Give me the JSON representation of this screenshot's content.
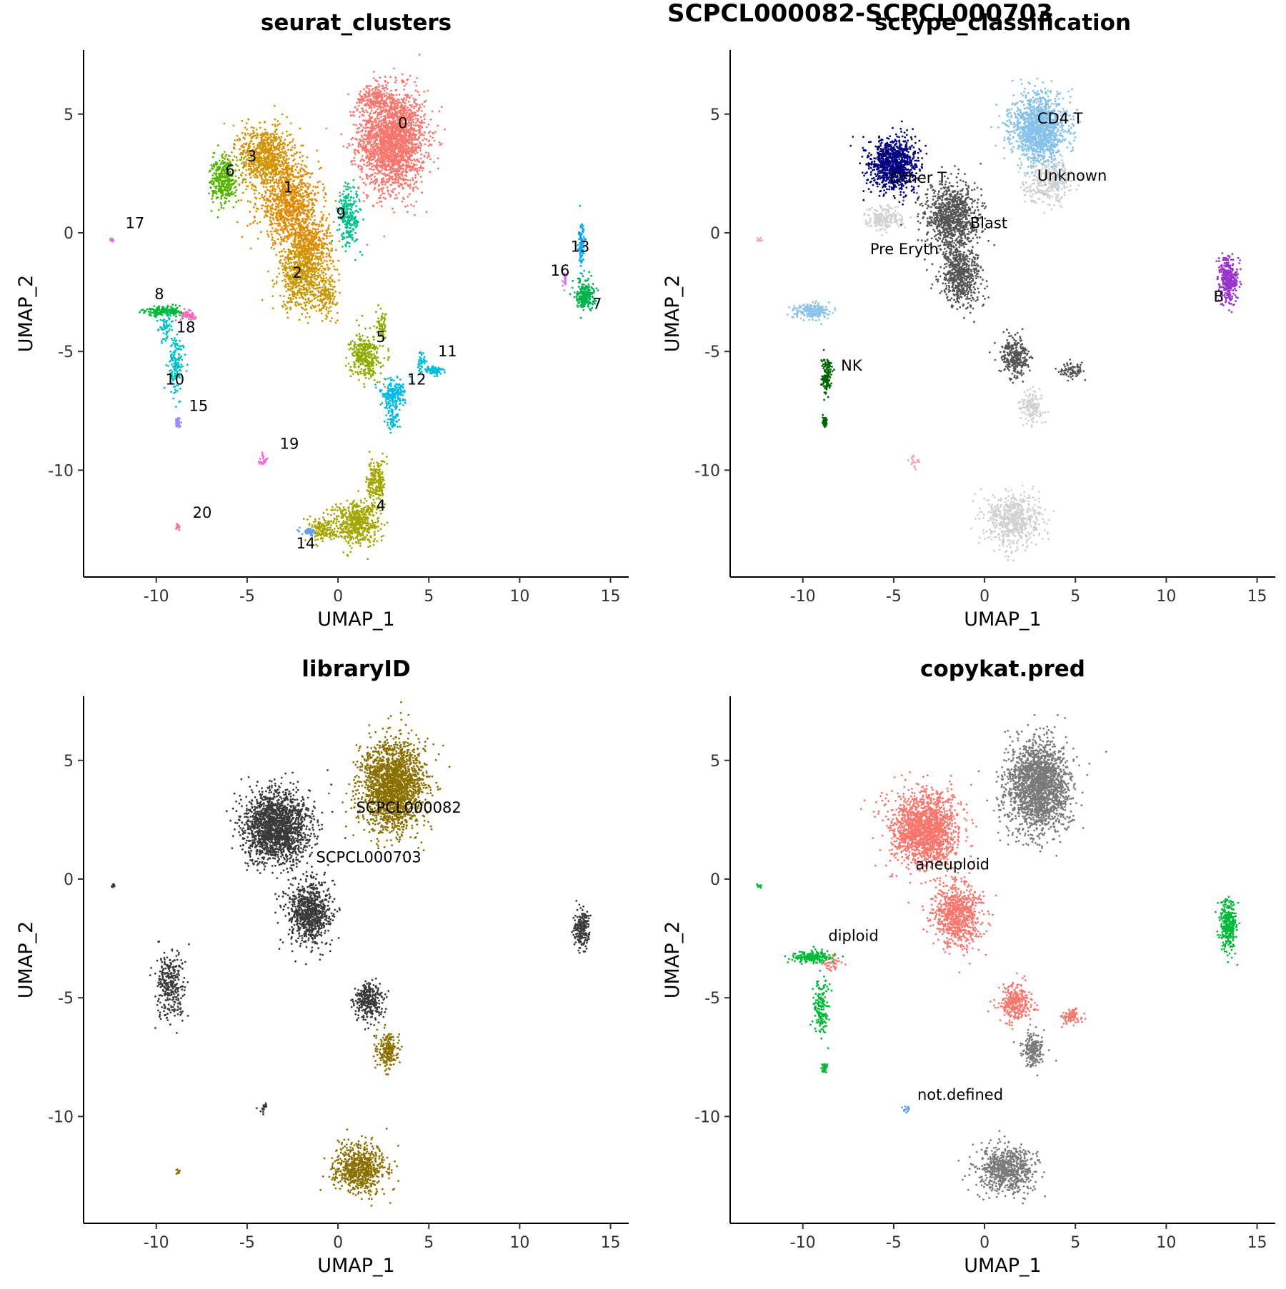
{
  "figure_title": "SCPCL000082-SCPCL000703",
  "chart_data": [
    {
      "type": "scatter",
      "title": "seurat_clusters",
      "xlabel": "UMAP_1",
      "ylabel": "UMAP_2",
      "xlim": [
        -14,
        16
      ],
      "ylim": [
        -14.5,
        7.7
      ],
      "xticks": [
        -10,
        -5,
        0,
        5,
        10,
        15
      ],
      "yticks": [
        -10,
        -5,
        0,
        5
      ],
      "grid": false,
      "legend": "none",
      "groups": [
        {
          "name": "0",
          "color": "#F8766D",
          "label": [
            3.3,
            4.4
          ],
          "blobs": [
            [
              3.0,
              3.9,
              1.8,
              2.1,
              2200
            ],
            [
              2.0,
              5.7,
              0.9,
              0.6,
              150
            ]
          ]
        },
        {
          "name": "1",
          "color": "#E18A00",
          "label": [
            -3.0,
            1.7
          ],
          "blobs": [
            [
              -2.7,
              1.2,
              1.7,
              1.6,
              900
            ],
            [
              -1.5,
              -0.5,
              1.2,
              1.2,
              400
            ]
          ]
        },
        {
          "name": "2",
          "color": "#CA9700",
          "label": [
            -2.5,
            -1.9
          ],
          "blobs": [
            [
              -2.0,
              -1.8,
              1.2,
              1.4,
              650
            ],
            [
              -0.6,
              -2.6,
              0.6,
              0.8,
              150
            ]
          ]
        },
        {
          "name": "3",
          "color": "#D39200",
          "label": [
            -5.0,
            3.0
          ],
          "blobs": [
            [
              -4.0,
              3.2,
              1.4,
              1.3,
              800
            ]
          ]
        },
        {
          "name": "4",
          "color": "#A3A500",
          "label": [
            2.1,
            -11.7
          ],
          "blobs": [
            [
              1.0,
              -12.2,
              1.3,
              0.9,
              550
            ],
            [
              2.1,
              -10.5,
              0.5,
              1.0,
              200
            ],
            [
              -0.8,
              -12.5,
              0.9,
              0.5,
              150
            ]
          ]
        },
        {
          "name": "5",
          "color": "#8EAB00",
          "label": [
            2.1,
            -4.6
          ],
          "blobs": [
            [
              1.5,
              -5.2,
              0.8,
              0.9,
              350
            ],
            [
              2.4,
              -4.0,
              0.3,
              0.6,
              60
            ]
          ]
        },
        {
          "name": "6",
          "color": "#53B400",
          "label": [
            -6.2,
            2.4
          ],
          "blobs": [
            [
              -6.3,
              2.2,
              0.7,
              1.0,
              350
            ]
          ]
        },
        {
          "name": "7",
          "color": "#00B34E",
          "label": [
            14.0,
            -3.2
          ],
          "blobs": [
            [
              13.6,
              -2.6,
              0.5,
              0.6,
              230
            ]
          ]
        },
        {
          "name": "8",
          "color": "#00BA38",
          "label": [
            -10.1,
            -2.8
          ],
          "blobs": [
            [
              -9.5,
              -3.3,
              1.0,
              0.2,
              200
            ]
          ]
        },
        {
          "name": "9",
          "color": "#00C08B",
          "label": [
            -0.1,
            0.6
          ],
          "blobs": [
            [
              0.6,
              0.7,
              0.6,
              1.3,
              250
            ]
          ]
        },
        {
          "name": "10",
          "color": "#00BFC4",
          "label": [
            -9.5,
            -6.4
          ],
          "blobs": [
            [
              -8.9,
              -5.6,
              0.4,
              1.2,
              150
            ],
            [
              -9.5,
              -3.9,
              0.4,
              0.6,
              60
            ]
          ]
        },
        {
          "name": "11",
          "color": "#00BCD8",
          "label": [
            5.5,
            -5.2
          ],
          "blobs": [
            [
              5.3,
              -5.8,
              0.5,
              0.2,
              80
            ],
            [
              4.6,
              -5.4,
              0.2,
              0.5,
              40
            ]
          ]
        },
        {
          "name": "12",
          "color": "#00B9E3",
          "label": [
            3.8,
            -6.4
          ],
          "blobs": [
            [
              3.0,
              -6.8,
              0.7,
              0.6,
              200
            ],
            [
              3.0,
              -7.9,
              0.4,
              0.5,
              60
            ]
          ]
        },
        {
          "name": "13",
          "color": "#00A9FF",
          "label": [
            12.8,
            -0.8
          ],
          "blobs": [
            [
              13.4,
              -0.6,
              0.15,
              0.9,
              100
            ]
          ]
        },
        {
          "name": "14",
          "color": "#619CFF",
          "label": [
            -2.3,
            -13.3
          ],
          "blobs": [
            [
              -1.6,
              -12.6,
              0.4,
              0.15,
              50
            ]
          ]
        },
        {
          "name": "15",
          "color": "#9590FF",
          "label": [
            -8.2,
            -7.5
          ],
          "blobs": [
            [
              -8.8,
              -8.0,
              0.15,
              0.2,
              50
            ]
          ]
        },
        {
          "name": "16",
          "color": "#C77CFF",
          "label": [
            11.7,
            -1.8
          ],
          "blobs": [
            [
              12.5,
              -2.0,
              0.15,
              0.3,
              25
            ]
          ]
        },
        {
          "name": "17",
          "color": "#E76BF3",
          "label": [
            -11.7,
            0.2
          ],
          "blobs": [
            [
              -12.4,
              -0.3,
              0.12,
              0.08,
              12
            ]
          ]
        },
        {
          "name": "18",
          "color": "#FF62BC",
          "label": [
            -8.9,
            -4.2
          ],
          "blobs": [
            [
              -8.2,
              -3.5,
              0.5,
              0.2,
              50
            ]
          ]
        },
        {
          "name": "19",
          "color": "#FD61D1",
          "label": [
            -3.2,
            -9.1
          ],
          "blobs": [
            [
              -4.1,
              -9.6,
              0.3,
              0.25,
              20
            ]
          ]
        },
        {
          "name": "20",
          "color": "#FF6C91",
          "label": [
            -8.0,
            -12.0
          ],
          "blobs": [
            [
              -8.8,
              -12.4,
              0.12,
              0.15,
              12
            ]
          ]
        }
      ]
    },
    {
      "type": "scatter",
      "title": "sctype_classification",
      "xlabel": "UMAP_1",
      "ylabel": "UMAP_2",
      "xlim": [
        -14,
        16
      ],
      "ylim": [
        -14.5,
        7.7
      ],
      "xticks": [
        -10,
        -5,
        0,
        5,
        10,
        15
      ],
      "yticks": [
        -10,
        -5,
        0,
        5
      ],
      "grid": false,
      "legend": "none",
      "groups": [
        {
          "name": "Unknown",
          "color": "#D0D0D0",
          "label": [
            2.9,
            2.2
          ],
          "blobs": [
            [
              3.5,
              2.2,
              1.3,
              0.9,
              350
            ],
            [
              -5.5,
              0.6,
              1.0,
              0.5,
              200
            ],
            [
              1.6,
              -12.1,
              1.5,
              1.1,
              600
            ],
            [
              2.6,
              -7.3,
              0.6,
              0.7,
              150
            ]
          ]
        },
        {
          "name": "CD4 T",
          "color": "#85C1E9",
          "label": [
            2.9,
            4.6
          ],
          "blobs": [
            [
              3.0,
              4.4,
              1.5,
              1.4,
              1300
            ]
          ]
        },
        {
          "name": "Other T",
          "color": "#000080",
          "label": [
            -5.2,
            2.1
          ],
          "blobs": [
            [
              -5.0,
              2.9,
              1.3,
              1.1,
              1000
            ]
          ]
        },
        {
          "name": "Blast",
          "color": "#555555",
          "label": [
            -0.8,
            0.2
          ],
          "blobs": [
            [
              -1.8,
              0.6,
              1.5,
              1.5,
              900
            ],
            [
              -1.3,
              -1.8,
              1.1,
              1.3,
              600
            ],
            [
              1.7,
              -5.2,
              0.8,
              0.8,
              300
            ],
            [
              4.8,
              -5.8,
              0.6,
              0.3,
              80
            ]
          ]
        },
        {
          "name": "Pre Eryth",
          "color": "#F4A6B7",
          "label": [
            -6.3,
            -0.9
          ],
          "blobs": [
            [
              -3.9,
              -9.6,
              0.3,
              0.25,
              20
            ],
            [
              -12.4,
              -0.3,
              0.12,
              0.08,
              12
            ]
          ]
        },
        {
          "name": "NK",
          "color": "#006400",
          "label": [
            -7.9,
            -5.8
          ],
          "blobs": [
            [
              -8.7,
              -6.0,
              0.3,
              0.7,
              130
            ],
            [
              -8.8,
              -8.0,
              0.15,
              0.2,
              50
            ]
          ]
        },
        {
          "name": "B",
          "color": "#9932CC",
          "label": [
            12.6,
            -2.9
          ],
          "blobs": [
            [
              13.4,
              -2.0,
              0.5,
              1.0,
              350
            ]
          ]
        },
        {
          "name": "",
          "color": "#8EC3EA",
          "label": null,
          "blobs": [
            [
              -9.5,
              -3.3,
              1.0,
              0.3,
              220
            ]
          ]
        }
      ]
    },
    {
      "type": "scatter",
      "title": "libraryID",
      "xlabel": "UMAP_1",
      "ylabel": "UMAP_2",
      "xlim": [
        -14,
        16
      ],
      "ylim": [
        -14.5,
        7.7
      ],
      "xticks": [
        -10,
        -5,
        0,
        5,
        10,
        15
      ],
      "yticks": [
        -10,
        -5,
        0,
        5
      ],
      "grid": false,
      "legend": "none",
      "groups": [
        {
          "name": "SCPCL000703",
          "color": "#3A3A3A",
          "label": [
            -1.2,
            0.7
          ],
          "blobs": [
            [
              -3.4,
              2.2,
              1.8,
              1.5,
              1800
            ],
            [
              -1.6,
              -1.4,
              1.2,
              1.4,
              800
            ],
            [
              -9.2,
              -4.5,
              0.8,
              1.4,
              300
            ],
            [
              1.7,
              -5.2,
              0.8,
              0.8,
              300
            ],
            [
              13.4,
              -2.1,
              0.4,
              0.8,
              200
            ],
            [
              -12.4,
              -0.3,
              0.12,
              0.08,
              12
            ],
            [
              -4.1,
              -9.6,
              0.3,
              0.25,
              20
            ]
          ]
        },
        {
          "name": "SCPCL000082",
          "color": "#8B7000",
          "label": [
            1.0,
            2.8
          ],
          "blobs": [
            [
              3.0,
              3.9,
              1.7,
              1.9,
              2000
            ],
            [
              1.2,
              -12.2,
              1.5,
              1.0,
              700
            ],
            [
              2.7,
              -7.2,
              0.6,
              0.7,
              200
            ],
            [
              -8.8,
              -12.3,
              0.12,
              0.15,
              12
            ]
          ]
        }
      ]
    },
    {
      "type": "scatter",
      "title": "copykat.pred",
      "xlabel": "UMAP_1",
      "ylabel": "UMAP_2",
      "xlim": [
        -14,
        16
      ],
      "ylim": [
        -14.5,
        7.7
      ],
      "xticks": [
        -10,
        -5,
        0,
        5,
        10,
        15
      ],
      "yticks": [
        -10,
        -5,
        0,
        5
      ],
      "grid": false,
      "legend": "none",
      "groups": [
        {
          "name": "aneuploid",
          "color": "#F8766D",
          "label": [
            -3.8,
            0.4
          ],
          "blobs": [
            [
              -3.3,
              2.1,
              1.8,
              1.5,
              1700
            ],
            [
              -1.5,
              -1.5,
              1.3,
              1.4,
              800
            ],
            [
              1.7,
              -5.2,
              0.8,
              0.8,
              300
            ],
            [
              4.8,
              -5.8,
              0.6,
              0.3,
              80
            ],
            [
              -8.3,
              -3.6,
              0.5,
              0.3,
              40
            ]
          ]
        },
        {
          "name": "diploid",
          "color": "#00BA38",
          "label": [
            -8.6,
            -2.6
          ],
          "blobs": [
            [
              -9.5,
              -3.3,
              1.0,
              0.25,
              200
            ],
            [
              -9.0,
              -5.5,
              0.4,
              1.2,
              150
            ],
            [
              13.4,
              -2.0,
              0.5,
              1.0,
              300
            ],
            [
              -8.8,
              -8.0,
              0.15,
              0.2,
              40
            ],
            [
              -12.4,
              -0.3,
              0.12,
              0.08,
              12
            ]
          ]
        },
        {
          "name": "not.defined",
          "color": "#619CFF",
          "label": [
            -3.7,
            -9.3
          ],
          "blobs": [
            [
              -4.3,
              -9.7,
              0.2,
              0.15,
              15
            ]
          ]
        },
        {
          "name": "",
          "color": "#7A7A7A",
          "label": null,
          "blobs": [
            [
              3.0,
              3.9,
              1.7,
              1.9,
              2000
            ],
            [
              1.2,
              -12.2,
              1.5,
              1.0,
              700
            ],
            [
              2.7,
              -7.2,
              0.6,
              0.7,
              200
            ]
          ]
        }
      ]
    }
  ]
}
